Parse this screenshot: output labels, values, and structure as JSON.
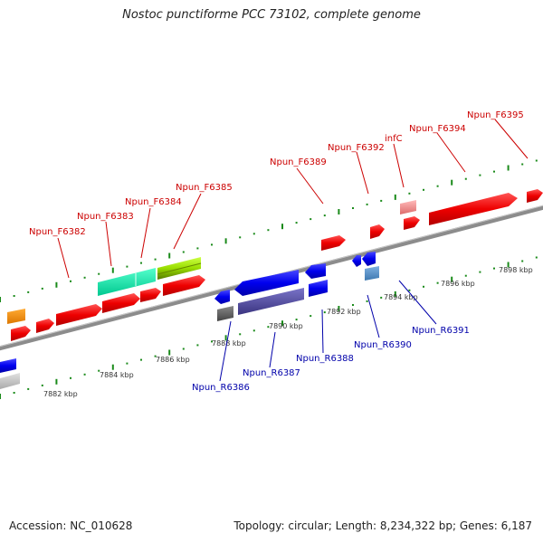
{
  "title": "Nostoc punctiforme PCC 73102, complete genome",
  "footer": {
    "accession": "Accession: NC_010628",
    "summary": "Topology: circular; Length: 8,234,322 bp; Genes: 6,187"
  },
  "colors": {
    "forward_label": "#cc0000",
    "reverse_label": "#0000aa",
    "backbone": "#888888",
    "tick": "#1a8a1a"
  },
  "scale": {
    "unit": "kbp",
    "labels": [
      "7882 kbp",
      "7884 kbp",
      "7886 kbp",
      "7888 kbp",
      "7890 kbp",
      "7892 kbp",
      "7894 kbp",
      "7896 kbp",
      "7898 kbp"
    ]
  },
  "forward_genes": [
    {
      "label": "Npun_F6382"
    },
    {
      "label": "Npun_F6383"
    },
    {
      "label": "Npun_F6384"
    },
    {
      "label": "Npun_F6385"
    },
    {
      "label": "Npun_F6389"
    },
    {
      "label": "Npun_F6392"
    },
    {
      "label": "infC"
    },
    {
      "label": "Npun_F6394"
    },
    {
      "label": "Npun_F6395"
    }
  ],
  "reverse_genes": [
    {
      "label": "Npun_R6386"
    },
    {
      "label": "Npun_R6387"
    },
    {
      "label": "Npun_R6388"
    },
    {
      "label": "Npun_R6390"
    },
    {
      "label": "Npun_R6391"
    }
  ]
}
